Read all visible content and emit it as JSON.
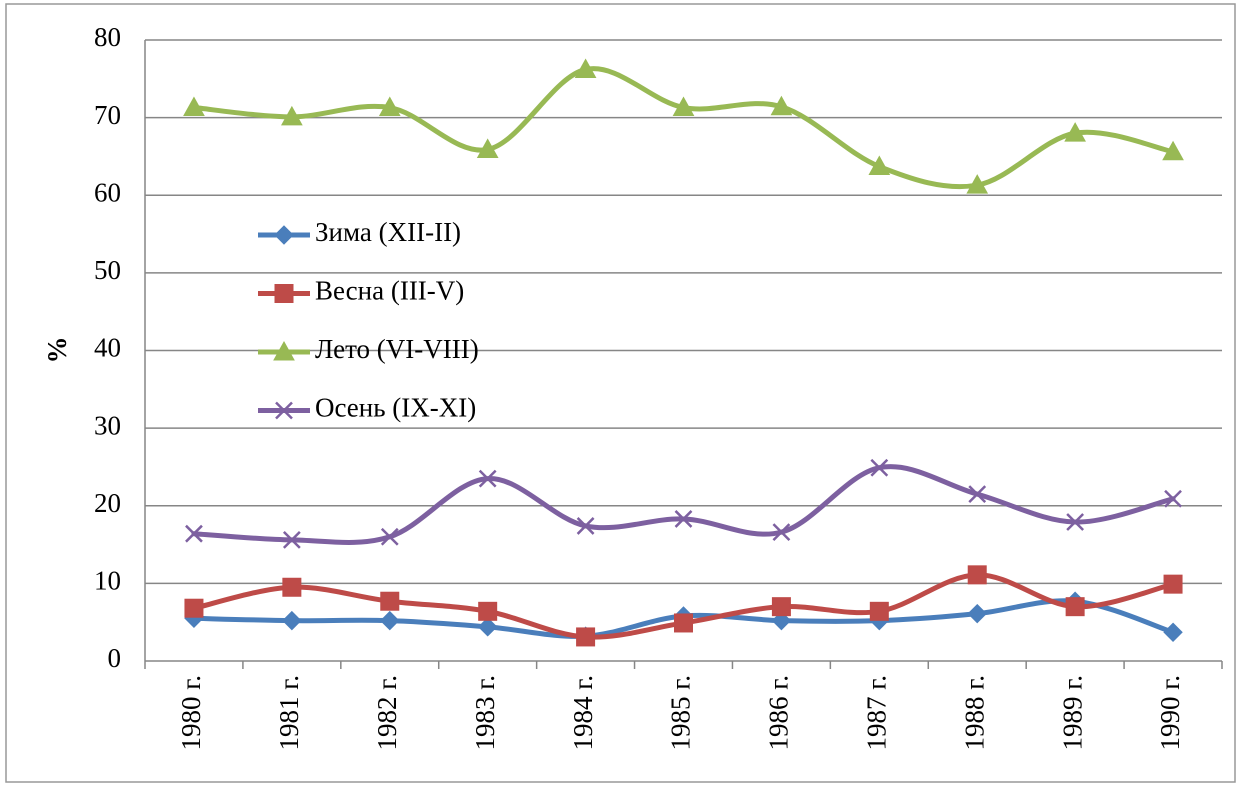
{
  "chart_data": {
    "type": "line",
    "y_label": "%",
    "categories": [
      "1980 г.",
      "1981 г.",
      "1982 г.",
      "1983 г.",
      "1984 г.",
      "1985 г.",
      "1986 г.",
      "1987 г.",
      "1988 г.",
      "1989 г.",
      "1990 г."
    ],
    "series": [
      {
        "name": "Зима (XII-II)",
        "color": "#4a7ebb",
        "marker": "diamond",
        "values": [
          5.5,
          5.2,
          5.2,
          4.4,
          3.2,
          5.8,
          5.2,
          5.2,
          6.1,
          7.7,
          3.7
        ]
      },
      {
        "name": "Весна (III-V)",
        "color": "#be4b48",
        "marker": "square",
        "values": [
          6.8,
          9.5,
          7.7,
          6.4,
          3.1,
          4.9,
          7.0,
          6.4,
          11.1,
          7.0,
          9.9
        ]
      },
      {
        "name": "Лето (VI-VIII)",
        "color": "#98b954",
        "marker": "triangle",
        "values": [
          71.3,
          70.1,
          71.3,
          65.9,
          76.2,
          71.3,
          71.4,
          63.7,
          61.3,
          68.0,
          65.6
        ]
      },
      {
        "name": "Осень (IX-XI)",
        "color": "#7d60a0",
        "marker": "x",
        "values": [
          16.4,
          15.6,
          16.0,
          23.5,
          17.4,
          18.3,
          16.6,
          24.9,
          21.5,
          17.9,
          20.9
        ]
      }
    ],
    "ylim": [
      0,
      80
    ],
    "yticks": [
      0,
      10,
      20,
      30,
      40,
      50,
      60,
      70,
      80
    ],
    "grid": true,
    "smooth": true
  }
}
